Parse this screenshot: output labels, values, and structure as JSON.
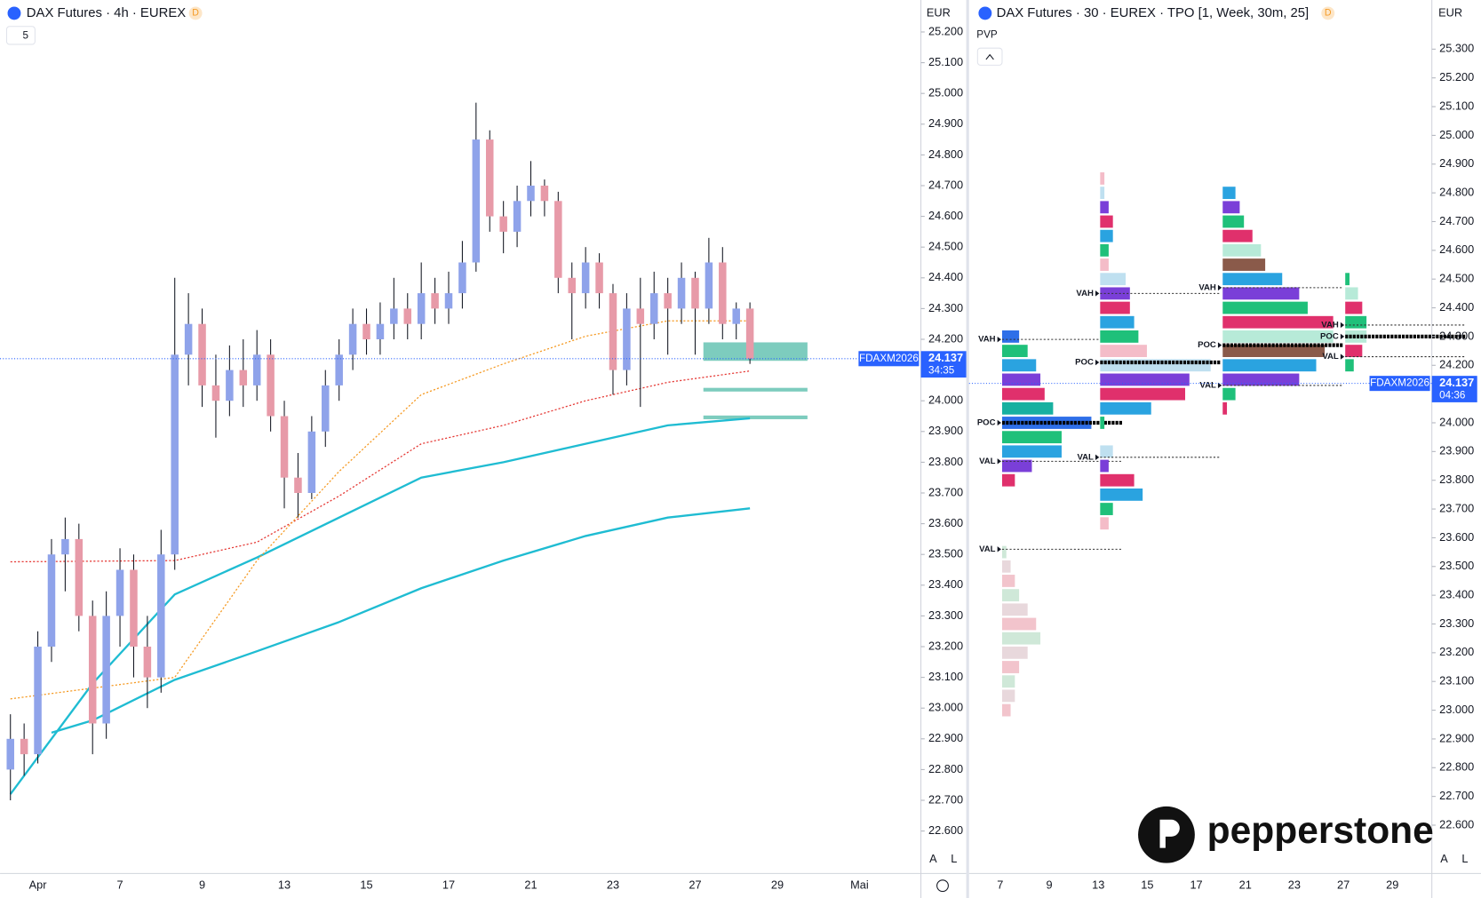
{
  "chart_data": [
    {
      "type": "candlestick",
      "title": "DAX Futures · 4h · EUREX",
      "badge": "D",
      "interval_control": "5",
      "currency": "EUR",
      "categories": [
        null,
        null,
        "Apr",
        null,
        null,
        null,
        null,
        null,
        "7",
        null,
        null,
        null,
        null,
        null,
        "9",
        null,
        null,
        null,
        null,
        null,
        "13",
        null,
        null,
        null,
        null,
        null,
        "15",
        null,
        null,
        null,
        null,
        null,
        "17",
        null,
        null,
        null,
        null,
        null,
        "21",
        null,
        null,
        null,
        null,
        null,
        "23",
        null,
        null,
        null,
        null,
        null,
        "27",
        null,
        null,
        null,
        null,
        null,
        "29",
        null,
        null,
        null,
        null,
        null,
        "Mai"
      ],
      "open": [
        22800,
        22900,
        22850,
        23200,
        23500,
        23550,
        23300,
        22950,
        23300,
        23450,
        23200,
        23100,
        23500,
        24150,
        24250,
        24050,
        24000,
        24100,
        24050,
        24150,
        23950,
        23750,
        23700,
        23900,
        24050,
        24150,
        24250,
        24200,
        24250,
        24300,
        24250,
        24350,
        24300,
        24350,
        24450,
        24850,
        24600,
        24550,
        24650,
        24700,
        24650,
        24400,
        24350,
        24450,
        24350,
        24100,
        24300,
        24250,
        24350,
        24300,
        24400,
        24300,
        24450,
        24250,
        24300,
        null,
        null,
        null,
        null,
        null,
        null,
        null,
        null
      ],
      "high": [
        22980,
        22950,
        23250,
        23550,
        23620,
        23600,
        23350,
        23380,
        23520,
        23500,
        23300,
        23580,
        24400,
        24350,
        24300,
        24150,
        24180,
        24200,
        24230,
        24200,
        24000,
        23830,
        23950,
        24100,
        24200,
        24300,
        24300,
        24320,
        24400,
        24350,
        24450,
        24400,
        24420,
        24520,
        24970,
        24880,
        24650,
        24700,
        24780,
        24720,
        24680,
        24450,
        24500,
        24480,
        24380,
        24350,
        24400,
        24420,
        24400,
        24450,
        24420,
        24530,
        24500,
        24320,
        24320,
        null,
        null,
        null,
        null,
        null,
        null,
        null,
        null
      ],
      "low": [
        22700,
        22780,
        22820,
        23150,
        23380,
        23250,
        22850,
        22900,
        23200,
        23100,
        23000,
        23050,
        23450,
        24050,
        23980,
        23880,
        23950,
        23980,
        24000,
        23900,
        23650,
        23620,
        23680,
        23850,
        24000,
        24100,
        24150,
        24150,
        24200,
        24200,
        24200,
        24250,
        24250,
        24300,
        24420,
        24550,
        24480,
        24500,
        24600,
        24600,
        24350,
        24200,
        24300,
        24300,
        24020,
        24050,
        23980,
        24200,
        24150,
        24250,
        24150,
        24250,
        24200,
        24200,
        24120,
        null,
        null,
        null,
        null,
        null,
        null,
        null,
        null
      ],
      "close": [
        22900,
        22850,
        23200,
        23500,
        23550,
        23300,
        22950,
        23300,
        23450,
        23200,
        23100,
        23500,
        24150,
        24250,
        24050,
        24000,
        24100,
        24050,
        24150,
        23950,
        23750,
        23700,
        23900,
        24050,
        24150,
        24250,
        24200,
        24250,
        24300,
        24250,
        24350,
        24300,
        24350,
        24450,
        24850,
        24600,
        24550,
        24650,
        24700,
        24650,
        24400,
        24350,
        24450,
        24350,
        24100,
        24300,
        24250,
        24350,
        24300,
        24400,
        24300,
        24450,
        24250,
        24300,
        24137,
        null,
        null,
        null,
        null,
        null,
        null,
        null,
        null
      ],
      "up_color": "#8fa3ea",
      "down_color": "#e79aa8",
      "lines": [
        {
          "x": [
            0,
            6,
            12,
            18,
            24,
            30,
            36,
            42,
            48,
            54
          ],
          "values": [
            22720,
            23080,
            23370,
            23490,
            23620,
            23750,
            23800,
            23860,
            23920,
            23943
          ],
          "color": "#1fbcd2",
          "style": "solid"
        },
        {
          "x": [
            3,
            6,
            12,
            18,
            24,
            30,
            36,
            42,
            48,
            54
          ],
          "values": [
            22920,
            22960,
            23092,
            23185,
            23280,
            23390,
            23480,
            23560,
            23620,
            23650
          ],
          "color": "#1fbcd2",
          "style": "solid"
        },
        {
          "x": [
            0,
            12,
            18,
            24,
            30,
            36,
            42,
            48,
            54
          ],
          "values": [
            23476,
            23480,
            23540,
            23690,
            23860,
            23920,
            24000,
            24060,
            24097
          ],
          "color": "#e53935",
          "style": "dotted"
        },
        {
          "x": [
            0,
            12,
            18,
            24,
            30,
            36,
            42,
            48,
            54
          ],
          "values": [
            23030,
            23100,
            23480,
            23770,
            24020,
            24120,
            24210,
            24260,
            24260
          ],
          "color": "#f59a23",
          "style": "dotted"
        }
      ],
      "zones": [
        {
          "x": [
            50.6,
            58.2
          ],
          "range": [
            24130,
            24190
          ]
        },
        {
          "x": [
            50.6,
            58.2
          ],
          "range": [
            24030,
            24042
          ]
        },
        {
          "x": [
            50.6,
            58.2
          ],
          "range": [
            23940,
            23952
          ]
        }
      ],
      "zone_color": "#5cbfae",
      "last_price": {
        "symbol": "FDAXM2026",
        "value": 24137,
        "label": "24.137",
        "countdown": "34:35"
      },
      "ylim": [
        22462,
        25304
      ],
      "yticks": [
        {
          "value": 22600,
          "label": "22.600"
        },
        {
          "value": 22700,
          "label": "22.700"
        },
        {
          "value": 22800,
          "label": "22.800"
        },
        {
          "value": 22900,
          "label": "22.900"
        },
        {
          "value": 23000,
          "label": "23.000"
        },
        {
          "value": 23100,
          "label": "23.100"
        },
        {
          "value": 23200,
          "label": "23.200"
        },
        {
          "value": 23300,
          "label": "23.300"
        },
        {
          "value": 23400,
          "label": "23.400"
        },
        {
          "value": 23500,
          "label": "23.500"
        },
        {
          "value": 23600,
          "label": "23.600"
        },
        {
          "value": 23700,
          "label": "23.700"
        },
        {
          "value": 23800,
          "label": "23.800"
        },
        {
          "value": 23900,
          "label": "23.900"
        },
        {
          "value": 24000,
          "label": "24.000"
        },
        {
          "value": 24100,
          "label": "24.100"
        },
        {
          "value": 24200,
          "label": "24.200"
        },
        {
          "value": 24300,
          "label": "24.300"
        },
        {
          "value": 24400,
          "label": "24.400"
        },
        {
          "value": 24500,
          "label": "24.500"
        },
        {
          "value": 24600,
          "label": "24.600"
        },
        {
          "value": 24700,
          "label": "24.700"
        },
        {
          "value": 24800,
          "label": "24.800"
        },
        {
          "value": 24900,
          "label": "24.900"
        },
        {
          "value": 25000,
          "label": "25.000"
        },
        {
          "value": 25100,
          "label": "25.100"
        },
        {
          "value": 25200,
          "label": "25.200"
        }
      ],
      "scale_buttons": [
        "A",
        "L"
      ]
    },
    {
      "type": "tpo",
      "title": "DAX Futures · 30 · EUREX · TPO [1, Week, 30m, 25]",
      "badge": "D",
      "indicator": "PVP",
      "currency": "EUR",
      "categories": [
        "7",
        "9",
        "13",
        "15",
        "17",
        "21",
        "23",
        "27",
        "29"
      ],
      "profiles": [
        {
          "x": 0,
          "prices": [
            23000,
            23050,
            23100,
            23150,
            23200,
            23250,
            23300,
            23350,
            23400,
            23450,
            23500,
            23550
          ],
          "counts": [
            2,
            3,
            3,
            4,
            6,
            9,
            8,
            6,
            4,
            3,
            2,
            1
          ],
          "colors": [
            "#f2c4cc",
            "#e8d8dc",
            "#cfe8d8"
          ],
          "levels": [
            {
              "name": "VAL",
              "value": 23560
            }
          ]
        },
        {
          "x": 0,
          "prices": [
            23800,
            23850,
            23900,
            23950,
            24000,
            24050,
            24100,
            24150,
            24200,
            24250,
            24300
          ],
          "counts": [
            3,
            7,
            14,
            14,
            21,
            12,
            10,
            9,
            8,
            6,
            4
          ],
          "colors": [
            "#e0306c",
            "#7a3fd8",
            "#2aa3e0",
            "#1fc07a",
            "#2e6fe8",
            "#18b0a0"
          ],
          "levels": [
            {
              "name": "VAH",
              "value": 24290
            },
            {
              "name": "POC",
              "value": 24000
            },
            {
              "name": "VAL",
              "value": 23866
            }
          ]
        },
        {
          "x": 2,
          "prices": [
            23650,
            23700,
            23750,
            23800,
            23850,
            23900,
            23950,
            24000,
            24050,
            24100,
            24150,
            24200,
            24250,
            24300,
            24350,
            24400,
            24450,
            24500,
            24550,
            24600,
            24650,
            24700,
            24750,
            24800,
            24850
          ],
          "counts": [
            2,
            3,
            10,
            8,
            2,
            3,
            0,
            1,
            12,
            20,
            21,
            26,
            11,
            9,
            8,
            7,
            7,
            6,
            2,
            2,
            3,
            3,
            2,
            1,
            1
          ],
          "colors": [
            "#f4bcc8",
            "#1fc07a",
            "#2aa3e0",
            "#e0306c",
            "#7a3fd8",
            "#bfe0f0"
          ],
          "levels": [
            {
              "name": "VAH",
              "value": 24450
            },
            {
              "name": "POC",
              "value": 24210
            },
            {
              "name": "VAL",
              "value": 23880
            }
          ]
        },
        {
          "x": 4.5,
          "prices": [
            24050,
            24100,
            24150,
            24200,
            24250,
            24300,
            24350,
            24400,
            24450,
            24500,
            24550,
            24600,
            24650,
            24700,
            24750,
            24800
          ],
          "counts": [
            1,
            3,
            18,
            22,
            24,
            26,
            26,
            20,
            18,
            14,
            10,
            9,
            7,
            5,
            4,
            3
          ],
          "colors": [
            "#e0306c",
            "#1fc07a",
            "#7a3fd8",
            "#2aa3e0",
            "#8a5a4a",
            "#b7ead8"
          ],
          "levels": [
            {
              "name": "VAH",
              "value": 24470
            },
            {
              "name": "POC",
              "value": 24270
            },
            {
              "name": "VAL",
              "value": 24130
            }
          ]
        },
        {
          "x": 7,
          "prices": [
            24200,
            24250,
            24300,
            24350,
            24400,
            24450,
            24500
          ],
          "counts": [
            2,
            4,
            5,
            5,
            4,
            3,
            1
          ],
          "colors": [
            "#1fc07a",
            "#e0306c",
            "#b7ead8"
          ],
          "levels": [
            {
              "name": "VAH",
              "value": 24340
            },
            {
              "name": "POC",
              "value": 24300
            },
            {
              "name": "VAL",
              "value": 24230
            }
          ]
        }
      ],
      "last_price": {
        "symbol": "FDAXM2026",
        "value": 24137,
        "label": "24.137",
        "countdown": "04:36"
      },
      "ylim": [
        22432,
        25471
      ],
      "yticks": [
        {
          "value": 22600,
          "label": "22.600"
        },
        {
          "value": 22700,
          "label": "22.700"
        },
        {
          "value": 22800,
          "label": "22.800"
        },
        {
          "value": 22900,
          "label": "22.900"
        },
        {
          "value": 23000,
          "label": "23.000"
        },
        {
          "value": 23100,
          "label": "23.100"
        },
        {
          "value": 23200,
          "label": "23.200"
        },
        {
          "value": 23300,
          "label": "23.300"
        },
        {
          "value": 23400,
          "label": "23.400"
        },
        {
          "value": 23500,
          "label": "23.500"
        },
        {
          "value": 23600,
          "label": "23.600"
        },
        {
          "value": 23700,
          "label": "23.700"
        },
        {
          "value": 23800,
          "label": "23.800"
        },
        {
          "value": 23900,
          "label": "23.900"
        },
        {
          "value": 24000,
          "label": "24.000"
        },
        {
          "value": 24100,
          "label": "24.100"
        },
        {
          "value": 24200,
          "label": "24.200"
        },
        {
          "value": 24300,
          "label": "24.300"
        },
        {
          "value": 24400,
          "label": "24.400"
        },
        {
          "value": 24500,
          "label": "24.500"
        },
        {
          "value": 24600,
          "label": "24.600"
        },
        {
          "value": 24700,
          "label": "24.700"
        },
        {
          "value": 24800,
          "label": "24.800"
        },
        {
          "value": 24900,
          "label": "24.900"
        },
        {
          "value": 25000,
          "label": "25.000"
        },
        {
          "value": 25100,
          "label": "25.100"
        },
        {
          "value": 25200,
          "label": "25.200"
        },
        {
          "value": 25300,
          "label": "25.300"
        }
      ],
      "scale_buttons": [
        "A",
        "L"
      ],
      "watermark": "pepperstone"
    }
  ]
}
